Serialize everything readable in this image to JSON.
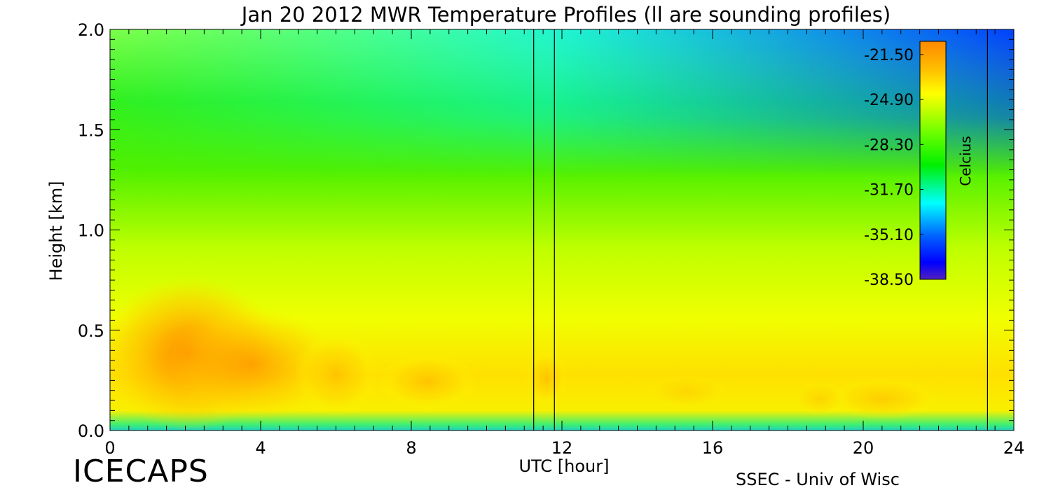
{
  "chart_data": {
    "type": "heatmap",
    "title": "Jan 20 2012 MWR Temperature Profiles (ll are sounding profiles)",
    "xlabel": "UTC [hour]",
    "ylabel": "Height [km]",
    "xlim": [
      0,
      24
    ],
    "ylim": [
      0,
      2.0
    ],
    "x_ticks": [
      "0",
      "4",
      "8",
      "12",
      "16",
      "20",
      "24"
    ],
    "y_ticks": [
      "0.0",
      "0.5",
      "1.0",
      "1.5",
      "2.0"
    ],
    "colorbar": {
      "label": "Celcius",
      "ticks": [
        "-21.50",
        "-24.90",
        "-28.30",
        "-31.70",
        "-35.10",
        "-38.50"
      ],
      "range": [
        -38.5,
        -20.5
      ]
    },
    "sounding_times_utc": [
      11.25,
      11.8,
      23.3
    ],
    "approx_temperature_c": {
      "warm_core_near_0.35km_at_2h": -21.5,
      "near_surface_0.15km": -23.5,
      "mid_level_1.0km": -28.5,
      "upper_2.0km_early": -30.0,
      "upper_2.0km_late": -35.5
    },
    "grid": false
  },
  "footer": {
    "logo_text": "ICECAPS",
    "credit": "SSEC - Univ of Wisc"
  }
}
